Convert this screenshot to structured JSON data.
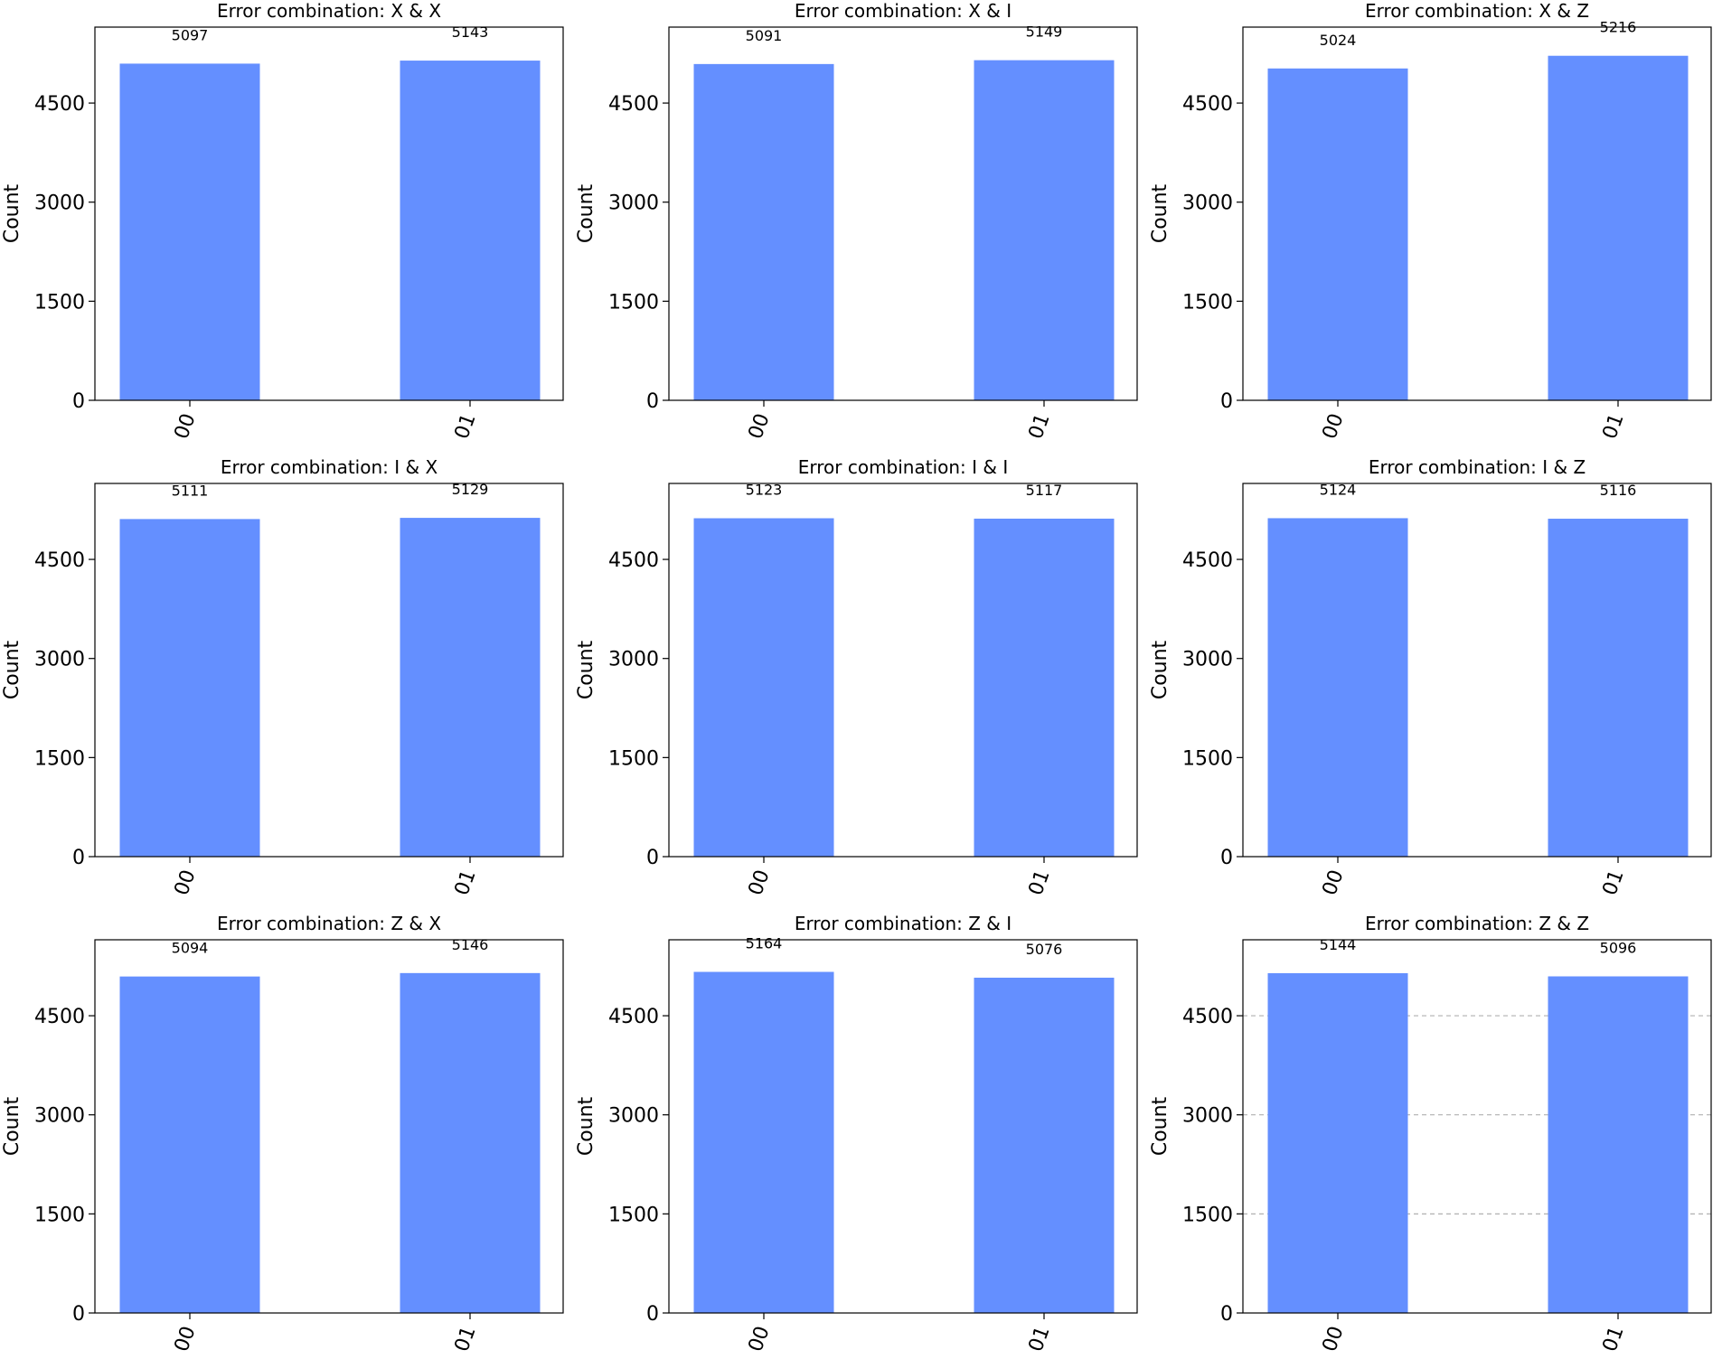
{
  "chart_data": [
    {
      "type": "bar",
      "title": "Error combination: X & X",
      "categories": [
        "00",
        "01"
      ],
      "values": [
        5097,
        5143
      ],
      "ylabel": "Count",
      "xlabel": "",
      "yticks": [
        "0",
        "1500",
        "3000",
        "4500"
      ],
      "ylim": [
        0,
        5650
      ],
      "grid": false
    },
    {
      "type": "bar",
      "title": "Error combination: X & I",
      "categories": [
        "00",
        "01"
      ],
      "values": [
        5091,
        5149
      ],
      "ylabel": "Count",
      "xlabel": "",
      "yticks": [
        "0",
        "1500",
        "3000",
        "4500"
      ],
      "ylim": [
        0,
        5650
      ],
      "grid": false
    },
    {
      "type": "bar",
      "title": "Error combination: X & Z",
      "categories": [
        "00",
        "01"
      ],
      "values": [
        5024,
        5216
      ],
      "ylabel": "Count",
      "xlabel": "",
      "yticks": [
        "0",
        "1500",
        "3000",
        "4500"
      ],
      "ylim": [
        0,
        5650
      ],
      "grid": false
    },
    {
      "type": "bar",
      "title": "Error combination: I & X",
      "categories": [
        "00",
        "01"
      ],
      "values": [
        5111,
        5129
      ],
      "ylabel": "Count",
      "xlabel": "",
      "yticks": [
        "0",
        "1500",
        "3000",
        "4500"
      ],
      "ylim": [
        0,
        5650
      ],
      "grid": false
    },
    {
      "type": "bar",
      "title": "Error combination: I & I",
      "categories": [
        "00",
        "01"
      ],
      "values": [
        5123,
        5117
      ],
      "ylabel": "Count",
      "xlabel": "",
      "yticks": [
        "0",
        "1500",
        "3000",
        "4500"
      ],
      "ylim": [
        0,
        5650
      ],
      "grid": false
    },
    {
      "type": "bar",
      "title": "Error combination: I & Z",
      "categories": [
        "00",
        "01"
      ],
      "values": [
        5124,
        5116
      ],
      "ylabel": "Count",
      "xlabel": "",
      "yticks": [
        "0",
        "1500",
        "3000",
        "4500"
      ],
      "ylim": [
        0,
        5650
      ],
      "grid": false
    },
    {
      "type": "bar",
      "title": "Error combination: Z & X",
      "categories": [
        "00",
        "01"
      ],
      "values": [
        5094,
        5146
      ],
      "ylabel": "Count",
      "xlabel": "",
      "yticks": [
        "0",
        "1500",
        "3000",
        "4500"
      ],
      "ylim": [
        0,
        5650
      ],
      "grid": false
    },
    {
      "type": "bar",
      "title": "Error combination: Z & I",
      "categories": [
        "00",
        "01"
      ],
      "values": [
        5164,
        5076
      ],
      "ylabel": "Count",
      "xlabel": "",
      "yticks": [
        "0",
        "1500",
        "3000",
        "4500"
      ],
      "ylim": [
        0,
        5650
      ],
      "grid": false
    },
    {
      "type": "bar",
      "title": "Error combination: Z & Z",
      "categories": [
        "00",
        "01"
      ],
      "values": [
        5144,
        5096
      ],
      "ylabel": "Count",
      "xlabel": "",
      "yticks": [
        "0",
        "1500",
        "3000",
        "4500"
      ],
      "ylim": [
        0,
        5650
      ],
      "grid": true
    }
  ],
  "colors": {
    "bar": "#648fff",
    "axis": "#000000",
    "grid": "#b0b0b0",
    "background": "#ffffff"
  }
}
